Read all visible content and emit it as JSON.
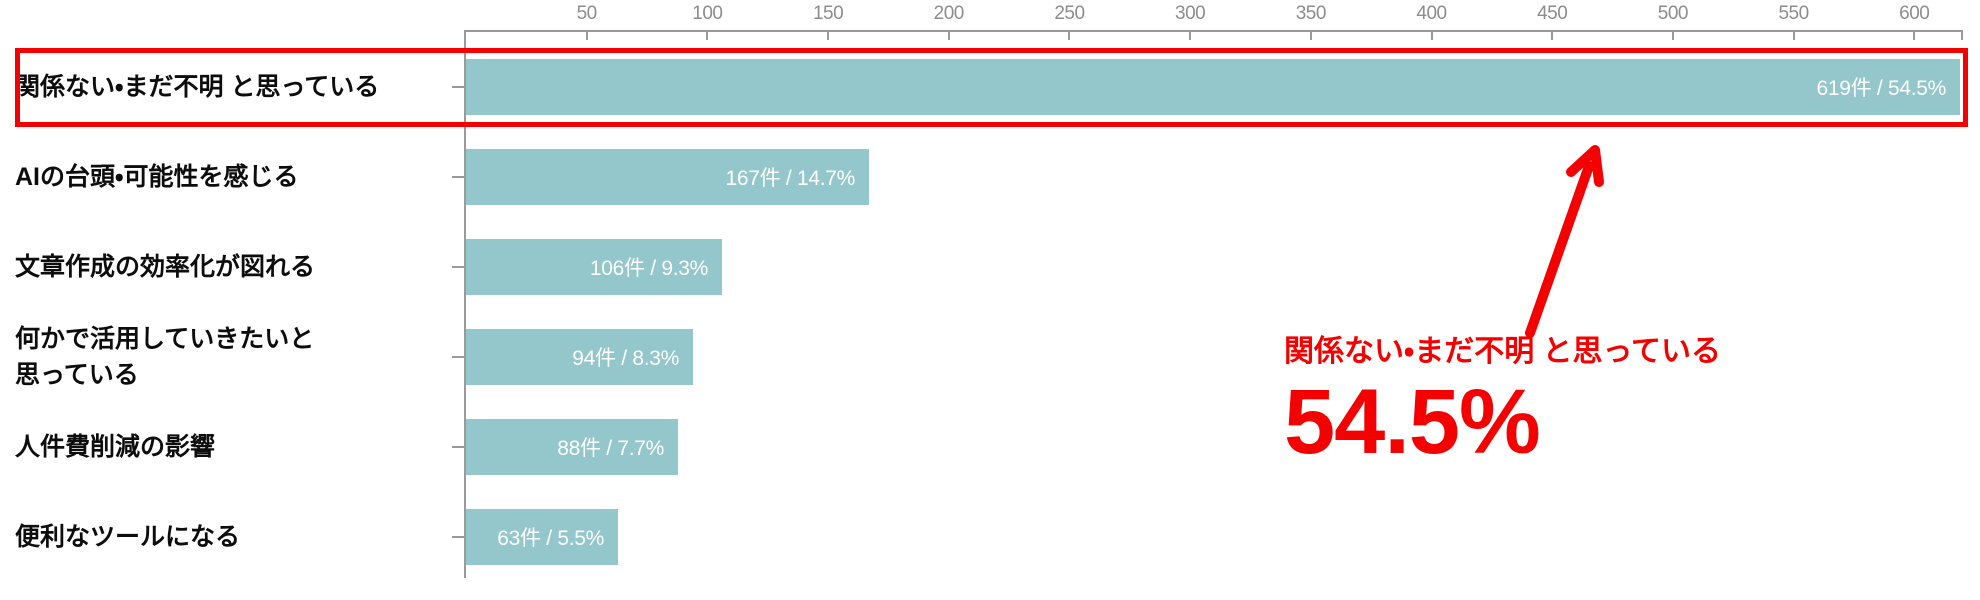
{
  "chart_data": {
    "type": "bar",
    "orientation": "horizontal",
    "title": "",
    "xlabel": "",
    "ylabel": "",
    "axis_position": "top",
    "grid": false,
    "xlim": [
      0,
      620
    ],
    "x_ticks": [
      50,
      100,
      150,
      200,
      250,
      300,
      350,
      400,
      450,
      500,
      550,
      600
    ],
    "categories": [
      "関係ない・まだ不明 と思っている",
      "AIの台頭・可能性を感じる",
      "文章作成の効率化が図れる",
      "何かで活用していきたいと\n思っている",
      "人件費削減の影響",
      "便利なツールになる"
    ],
    "values": [
      619,
      167,
      106,
      94,
      88,
      63
    ],
    "percentages": [
      54.5,
      14.7,
      9.3,
      8.3,
      7.7,
      5.5
    ],
    "bar_labels": [
      "619件 / 54.5%",
      "167件 / 14.7%",
      "106件 / 9.3%",
      "94件 / 8.3%",
      "88件 / 7.7%",
      "63件 / 5.5%"
    ],
    "highlight_index": 0
  },
  "annotation": {
    "label": "関係ない・まだ不明 と思っている",
    "value": "54.5%"
  },
  "colors": {
    "bar_teal": "#94c7cc",
    "bar_label_white": "#ffffff",
    "accent_red": "#f40000",
    "axis_gray": "#9a9a9a",
    "tick_text_gray": "#8d8d8d"
  }
}
